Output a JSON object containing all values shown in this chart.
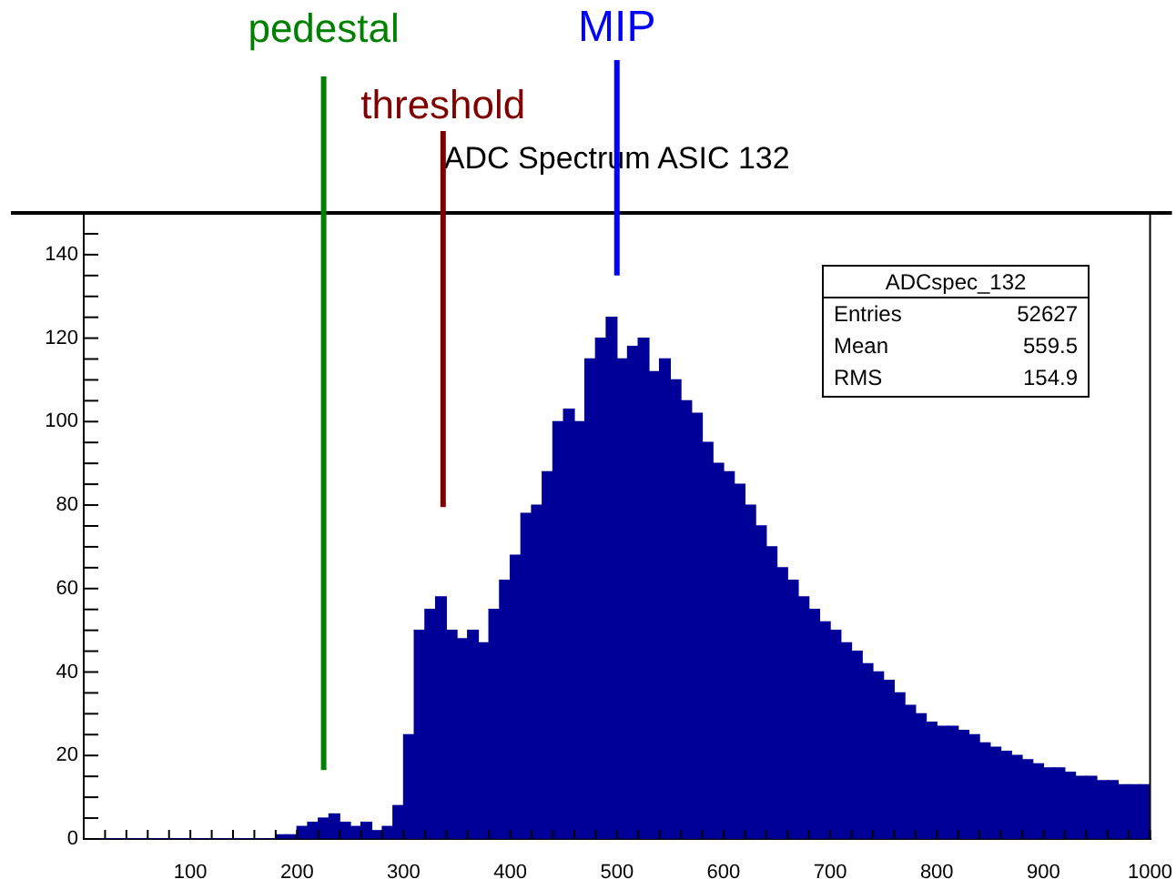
{
  "chart_data": {
    "type": "histogram",
    "title": "ADC Spectrum ASIC 132",
    "bins": [
      0,
      10,
      20,
      30,
      40,
      50,
      60,
      70,
      80,
      90,
      100,
      110,
      120,
      130,
      140,
      150,
      160,
      170,
      180,
      190,
      200,
      210,
      220,
      230,
      240,
      250,
      260,
      270,
      280,
      290,
      300,
      310,
      320,
      330,
      340,
      350,
      360,
      370,
      380,
      390,
      400,
      410,
      420,
      430,
      440,
      450,
      460,
      470,
      480,
      490,
      500,
      510,
      520,
      530,
      540,
      550,
      560,
      570,
      580,
      590,
      600,
      610,
      620,
      630,
      640,
      650,
      660,
      670,
      680,
      690,
      700,
      710,
      720,
      730,
      740,
      750,
      760,
      770,
      780,
      790,
      800,
      810,
      820,
      830,
      840,
      850,
      860,
      870,
      880,
      890,
      900,
      910,
      920,
      930,
      940,
      950,
      960,
      970,
      980,
      990,
      1000
    ],
    "values": [
      0,
      0,
      0,
      0,
      0,
      0,
      0,
      0,
      0,
      0,
      0,
      0,
      0,
      0,
      0,
      0,
      0,
      0,
      1,
      1,
      3,
      4,
      5,
      6,
      4,
      3,
      4,
      2,
      3,
      8,
      25,
      50,
      55,
      58,
      50,
      48,
      50,
      47,
      55,
      62,
      68,
      78,
      80,
      88,
      100,
      103,
      100,
      115,
      120,
      125,
      115,
      118,
      120,
      112,
      115,
      110,
      105,
      102,
      95,
      90,
      88,
      85,
      80,
      75,
      70,
      65,
      62,
      58,
      55,
      52,
      50,
      47,
      45,
      42,
      40,
      38,
      35,
      32,
      30,
      28,
      27,
      27,
      26,
      25,
      23,
      22,
      21,
      20,
      19,
      18,
      17,
      17,
      16,
      15,
      15,
      14,
      14,
      13,
      13,
      13
    ],
    "color": "#000099",
    "xlim": [
      0,
      1000
    ],
    "xticks": [
      100,
      200,
      300,
      400,
      500,
      600,
      700,
      800,
      900,
      1000
    ],
    "ylim": [
      0,
      150
    ],
    "yticks": [
      0,
      20,
      40,
      60,
      80,
      100,
      120,
      140
    ],
    "ref_lines": [
      {
        "axis": "x",
        "value": 225,
        "label": "pedestal",
        "color": "#008000"
      },
      {
        "axis": "x",
        "value": 337,
        "label": "threshold",
        "color": "#800000"
      },
      {
        "axis": "x",
        "value": 500,
        "label": "MIP",
        "color": "#0000ff"
      }
    ],
    "annotations": [
      "ADCspec_132",
      "Entries",
      "52627",
      "Mean",
      "559.5",
      "RMS",
      "154.9"
    ],
    "grid": false,
    "legend": false
  }
}
